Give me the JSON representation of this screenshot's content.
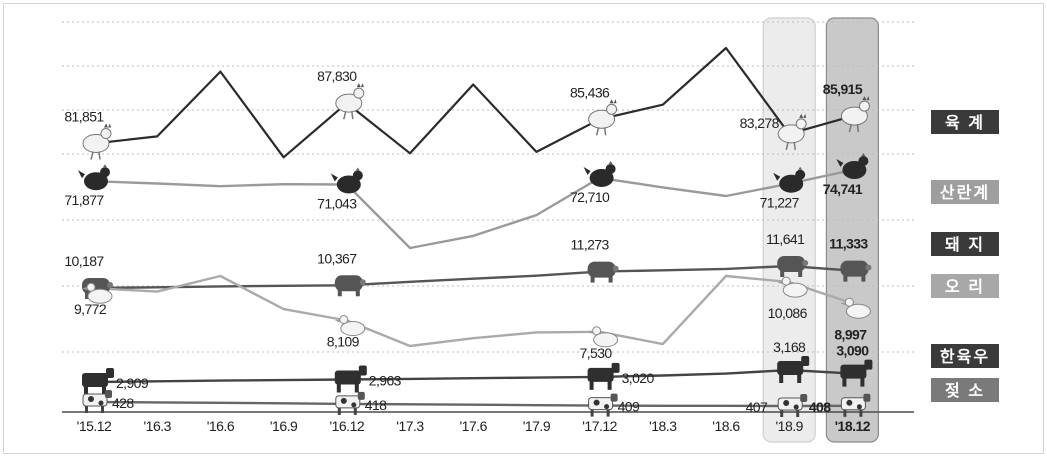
{
  "chart_data": {
    "type": "line",
    "x": [
      "'15.12",
      "'16.3",
      "'16.6",
      "'16.9",
      "'16.12",
      "'17.3",
      "'17.6",
      "'17.9",
      "'17.12",
      "'18.3",
      "'18.6",
      "'18.9",
      "'18.12"
    ],
    "highlighted_x": [
      "'18.9",
      "'18.12"
    ],
    "grid": true,
    "legend_position": "right",
    "series": [
      {
        "name": "육  계",
        "color": "#2b2b2b",
        "values": [
          81851,
          82900,
          92500,
          79800,
          87830,
          80400,
          90600,
          80600,
          85436,
          87600,
          96000,
          83278,
          85915
        ],
        "labels": [
          {
            "i": 0,
            "text": "81,851"
          },
          {
            "i": 4,
            "text": "87,830"
          },
          {
            "i": 8,
            "text": "85,436"
          },
          {
            "i": 11,
            "text": "83,278"
          },
          {
            "i": 12,
            "text": "85,915"
          }
        ]
      },
      {
        "name": "산란계",
        "color": "#9a9a9a",
        "values": [
          71877,
          71300,
          70600,
          71100,
          71043,
          54800,
          57900,
          63200,
          72710,
          70300,
          68100,
          71227,
          74741
        ],
        "labels": [
          {
            "i": 0,
            "text": "71,877"
          },
          {
            "i": 4,
            "text": "71,043"
          },
          {
            "i": 8,
            "text": "72,710"
          },
          {
            "i": 11,
            "text": "71,227"
          },
          {
            "i": 12,
            "text": "74,741"
          }
        ]
      },
      {
        "name": "돼  지",
        "color": "#555555",
        "values": [
          10187,
          10230,
          10290,
          10330,
          10367,
          10600,
          10800,
          11000,
          11273,
          11360,
          11450,
          11641,
          11333
        ],
        "labels": [
          {
            "i": 0,
            "text": "10,187"
          },
          {
            "i": 4,
            "text": "10,367"
          },
          {
            "i": 8,
            "text": "11,273"
          },
          {
            "i": 11,
            "text": "11,641"
          },
          {
            "i": 12,
            "text": "11,333"
          }
        ]
      },
      {
        "name": "오  리",
        "color": "#aaaaaa",
        "values": [
          9772,
          9600,
          10400,
          8700,
          8109,
          6800,
          7200,
          7500,
          7530,
          6900,
          10400,
          10086,
          8997
        ],
        "labels": [
          {
            "i": 0,
            "text": "9,772"
          },
          {
            "i": 4,
            "text": "8,109"
          },
          {
            "i": 8,
            "text": "7,530"
          },
          {
            "i": 11,
            "text": "10,086"
          },
          {
            "i": 12,
            "text": "8,997"
          }
        ]
      },
      {
        "name": "한육우",
        "color": "#444444",
        "values": [
          2909,
          2925,
          2940,
          2950,
          2963,
          2975,
          2990,
          3005,
          3020,
          3050,
          3090,
          3168,
          3090
        ],
        "labels": [
          {
            "i": 0,
            "text": "2,909"
          },
          {
            "i": 4,
            "text": "2,963"
          },
          {
            "i": 8,
            "text": "3,020"
          },
          {
            "i": 11,
            "text": "3,168"
          },
          {
            "i": 12,
            "text": "3,090"
          }
        ]
      },
      {
        "name": "젖  소",
        "color": "#666666",
        "values": [
          428,
          426,
          424,
          421,
          418,
          416,
          414,
          411,
          409,
          408,
          408,
          407,
          408
        ],
        "labels": [
          {
            "i": 0,
            "text": "428"
          },
          {
            "i": 4,
            "text": "418"
          },
          {
            "i": 8,
            "text": "409"
          },
          {
            "i": 11,
            "text": "407"
          },
          {
            "i": 12,
            "text": "408"
          }
        ]
      }
    ]
  }
}
